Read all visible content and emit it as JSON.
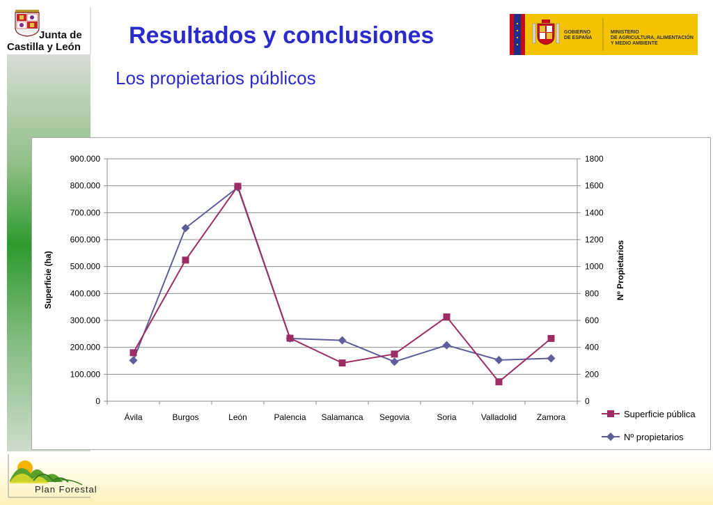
{
  "header": {
    "title": "Resultados y conclusiones",
    "subtitle": "Los propietarios públicos"
  },
  "logos": {
    "jcyl_line1": "Junta de",
    "jcyl_line2": "Castilla y León",
    "gov_line1": "GOBIERNO",
    "gov_line2": "DE ESPAÑA",
    "ministry_line1": "MINISTERIO",
    "ministry_line2": "DE AGRICULTURA, ALIMENTACIÓN",
    "ministry_line3": "Y MEDIO AMBIENTE",
    "plan_forestal": "Plan Forestal"
  },
  "colors": {
    "title": "#2b2bcc",
    "series_superficie": "#9b2d64",
    "series_propietarios": "#5e5e9a"
  },
  "chart_data": {
    "type": "line",
    "categories": [
      "Ávila",
      "Burgos",
      "León",
      "Palencia",
      "Salamanca",
      "Segovia",
      "Soria",
      "Valladolid",
      "Zamora"
    ],
    "series": [
      {
        "name": "Superficie pública",
        "axis": "left",
        "marker": "square",
        "values": [
          180000,
          524000,
          798000,
          234000,
          142000,
          175000,
          313000,
          72000,
          233000
        ]
      },
      {
        "name": "Nº propietarios",
        "axis": "right",
        "marker": "diamond",
        "values": [
          303,
          1286,
          1588,
          466,
          452,
          293,
          416,
          306,
          318
        ]
      }
    ],
    "ylabel": "Superficie (ha)",
    "y2label": "Nº Propietarios",
    "ylim": [
      0,
      900000
    ],
    "y2lim": [
      0,
      1800
    ],
    "yticks": [
      "0",
      "100.000",
      "200.000",
      "300.000",
      "400.000",
      "500.000",
      "600.000",
      "700.000",
      "800.000",
      "900.000"
    ],
    "y2ticks": [
      "0",
      "200",
      "400",
      "600",
      "800",
      "1000",
      "1200",
      "1400",
      "1600",
      "1800"
    ],
    "grid": true,
    "legend": "right"
  }
}
